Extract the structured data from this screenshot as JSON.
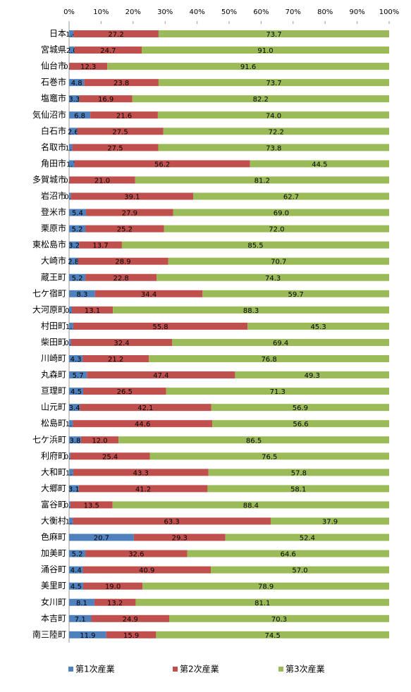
{
  "chart_data": {
    "type": "bar",
    "orientation": "horizontal",
    "stacking": "percent",
    "categories": [
      "日本",
      "宮城県",
      "仙台市",
      "石巻市",
      "塩竈市",
      "気仙沼市",
      "白石市",
      "名取市",
      "角田市",
      "多賀城市",
      "岩沼市",
      "登米市",
      "栗原市",
      "東松島市",
      "大崎市",
      "蔵王町",
      "七ケ宿町",
      "大河原町",
      "村田町",
      "柴田町",
      "川崎町",
      "丸森町",
      "亘理町",
      "山元町",
      "松島町",
      "七ケ浜町",
      "利府町",
      "大和町",
      "大郷町",
      "富谷町",
      "大衡村",
      "色麻町",
      "加美町",
      "涌谷町",
      "美里町",
      "女川町",
      "本吉町",
      "南三陸町"
    ],
    "series": [
      {
        "name": "第1次産業",
        "color": "#4f81bd",
        "values": [
          1.4,
          2.0,
          0.1,
          4.8,
          3.3,
          6.8,
          2.6,
          1.0,
          1.7,
          0.1,
          0.6,
          5.4,
          5.2,
          3.2,
          2.8,
          5.2,
          8.3,
          0.9,
          1.3,
          0.6,
          4.3,
          5.7,
          4.5,
          3.4,
          1.2,
          3.8,
          0.4,
          1.3,
          3.1,
          0.4,
          1.2,
          20.7,
          5.2,
          4.4,
          4.5,
          8.1,
          7.1,
          11.9
        ],
        "value_labels": [
          "1.4",
          "2.0",
          "0.1",
          "4.8",
          "3.3",
          "6.8",
          "2.6",
          "1.0",
          "1.7",
          "0.1",
          "0.6",
          "5.4",
          "5.2",
          "3.2",
          "2.8",
          "5.2",
          "8.3",
          "0.9",
          "1.3",
          "0.6",
          "4.3",
          "5.7",
          "4.5",
          "3.4",
          "1.2",
          "3.8",
          "0.4",
          "1.3",
          "3.1",
          "0.4",
          "1.2",
          "20.7",
          "5.2",
          "4.4",
          "4.5",
          "8.1",
          "7.1",
          "11.9"
        ]
      },
      {
        "name": "第2次産業",
        "color": "#c0504d",
        "values": [
          27.2,
          24.7,
          12.3,
          23.8,
          16.9,
          21.6,
          27.5,
          27.5,
          56.2,
          21.0,
          39.1,
          27.9,
          25.2,
          13.7,
          28.9,
          22.8,
          34.4,
          13.1,
          55.8,
          32.4,
          21.2,
          47.4,
          26.5,
          42.1,
          44.6,
          12.0,
          25.4,
          43.3,
          41.2,
          13.5,
          63.3,
          29.3,
          32.6,
          40.9,
          19.0,
          13.2,
          24.9,
          15.9
        ],
        "value_labels": [
          "27.2",
          "24.7",
          "12.3",
          "23.8",
          "16.9",
          "21.6",
          "27.5",
          "27.5",
          "56.2",
          "21.0",
          "39.1",
          "27.9",
          "25.2",
          "13.7",
          "28.9",
          "22.8",
          "34.4",
          "13.1",
          "55.8",
          "32.4",
          "21.2",
          "47.4",
          "26.5",
          "42.1",
          "44.6",
          "12.0",
          "25.4",
          "43.3",
          "41.2",
          "13.5",
          "63.3",
          "29.3",
          "32.6",
          "40.9",
          "19.0",
          "13.2",
          "24.9",
          "15.9"
        ]
      },
      {
        "name": "第3次産業",
        "color": "#9bbb59",
        "values": [
          73.7,
          91.0,
          91.6,
          73.7,
          82.2,
          74.0,
          72.2,
          73.8,
          44.5,
          81.2,
          62.7,
          69.0,
          72.0,
          85.5,
          70.7,
          74.3,
          59.7,
          88.3,
          45.3,
          69.4,
          76.8,
          49.3,
          71.3,
          56.9,
          56.6,
          86.5,
          76.5,
          57.8,
          58.1,
          88.4,
          37.9,
          52.4,
          64.6,
          57.0,
          78.9,
          81.1,
          70.3,
          74.5
        ],
        "value_labels": [
          "73.7",
          "91.0",
          "91.6",
          "73.7",
          "82.2",
          "74.0",
          "72.2",
          "73.8",
          "44.5",
          "81.2",
          "62.7",
          "69.0",
          "72.0",
          "85.5",
          "70.7",
          "74.3",
          "59.7",
          "88.3",
          "45.3",
          "69.4",
          "76.8",
          "49.3",
          "71.3",
          "56.9",
          "56.6",
          "86.5",
          "76.5",
          "57.8",
          "58.1",
          "88.4",
          "37.9",
          "52.4",
          "64.6",
          "57.0",
          "78.9",
          "81.1",
          "70.3",
          "74.5"
        ]
      }
    ],
    "xlim": [
      0,
      100
    ],
    "xticks": [
      {
        "value": 0,
        "label": "0%"
      },
      {
        "value": 10,
        "label": "10%"
      },
      {
        "value": 20,
        "label": "20%"
      },
      {
        "value": 30,
        "label": "30%"
      },
      {
        "value": 40,
        "label": "40%"
      },
      {
        "value": 50,
        "label": "50%"
      },
      {
        "value": 60,
        "label": "60%"
      },
      {
        "value": 70,
        "label": "70%"
      },
      {
        "value": 80,
        "label": "80%"
      },
      {
        "value": 90,
        "label": "90%"
      },
      {
        "value": 100,
        "label": "100%"
      }
    ],
    "legend": "bottom"
  }
}
